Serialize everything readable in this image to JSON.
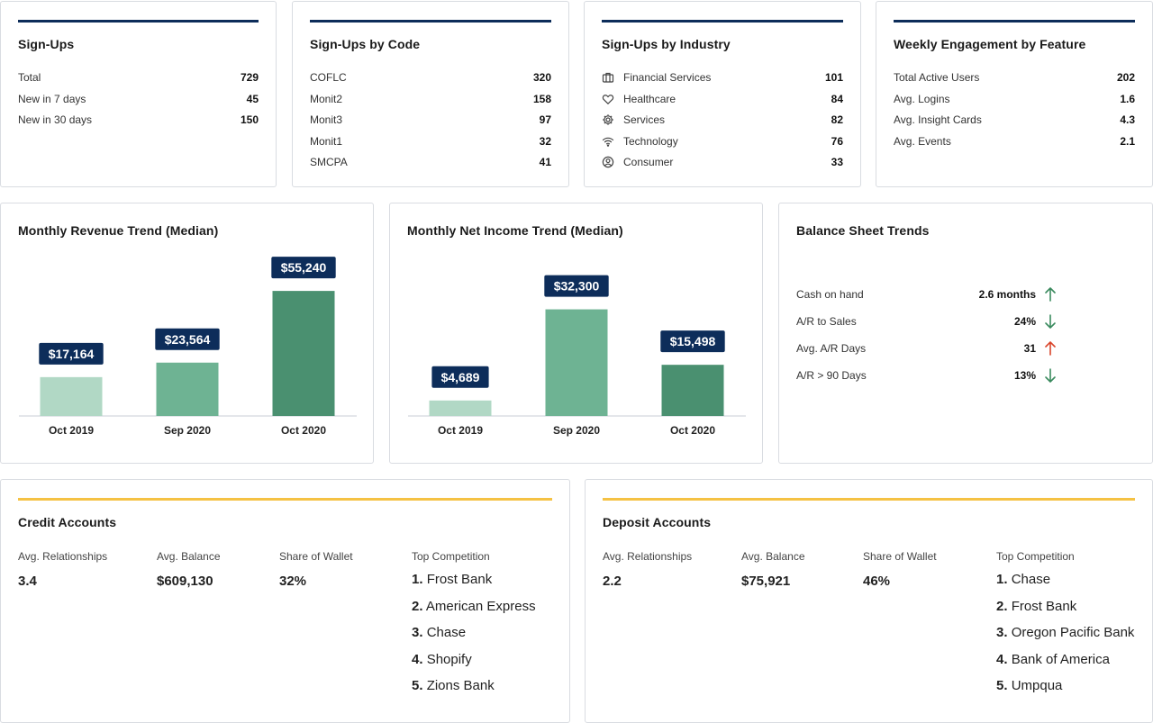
{
  "signups": {
    "title": "Sign-Ups",
    "rows": [
      {
        "label": "Total",
        "value": "729"
      },
      {
        "label": "New in 7 days",
        "value": "45"
      },
      {
        "label": "New in 30 days",
        "value": "150"
      }
    ]
  },
  "signups_by_code": {
    "title": "Sign-Ups by Code",
    "rows": [
      {
        "label": "COFLC",
        "value": "320"
      },
      {
        "label": "Monit2",
        "value": "158"
      },
      {
        "label": "Monit3",
        "value": "97"
      },
      {
        "label": "Monit1",
        "value": "32"
      },
      {
        "label": "SMCPA",
        "value": "41"
      }
    ]
  },
  "signups_by_industry": {
    "title": "Sign-Ups by Industry",
    "rows": [
      {
        "label": "Financial Services",
        "value": "101",
        "icon": "briefcase-icon"
      },
      {
        "label": "Healthcare",
        "value": "84",
        "icon": "heart-icon"
      },
      {
        "label": "Services",
        "value": "82",
        "icon": "gear-icon"
      },
      {
        "label": "Technology",
        "value": "76",
        "icon": "wifi-icon"
      },
      {
        "label": "Consumer",
        "value": "33",
        "icon": "user-circle-icon"
      }
    ]
  },
  "weekly_engagement": {
    "title": "Weekly Engagement by Feature",
    "rows": [
      {
        "label": "Total Active Users",
        "value": "202"
      },
      {
        "label": "Avg. Logins",
        "value": "1.6"
      },
      {
        "label": "Avg. Insight Cards",
        "value": "4.3"
      },
      {
        "label": "Avg. Events",
        "value": "2.1"
      }
    ]
  },
  "chart_data": [
    {
      "type": "bar",
      "title": "Monthly Revenue Trend (Median)",
      "categories": [
        "Oct 2019",
        "Sep 2020",
        "Oct 2020"
      ],
      "values": [
        17164,
        23564,
        55240
      ],
      "labels": [
        "$17,164",
        "$23,564",
        "$55,240"
      ],
      "colors": [
        "#b1d8c5",
        "#6eb393",
        "#4a9070"
      ],
      "ylim": [
        0,
        70000
      ]
    },
    {
      "type": "bar",
      "title": "Monthly Net Income Trend (Median)",
      "categories": [
        "Oct 2019",
        "Sep 2020",
        "Oct 2020"
      ],
      "values": [
        4689,
        32300,
        15498
      ],
      "labels": [
        "$4,689",
        "$32,300",
        "$15,498"
      ],
      "colors": [
        "#b1d8c5",
        "#6eb393",
        "#4a9070"
      ],
      "ylim": [
        0,
        48000
      ]
    }
  ],
  "balance_sheet": {
    "title": "Balance Sheet Trends",
    "rows": [
      {
        "label": "Cash on hand",
        "value": "2.6 months",
        "direction": "up",
        "color": "#3a8a5e"
      },
      {
        "label": "A/R to Sales",
        "value": "24%",
        "direction": "down",
        "color": "#3a8a5e"
      },
      {
        "label": "Avg. A/R Days",
        "value": "31",
        "direction": "up",
        "color": "#d9452b"
      },
      {
        "label": "A/R > 90 Days",
        "value": "13%",
        "direction": "down",
        "color": "#3a8a5e"
      }
    ]
  },
  "credit_accounts": {
    "title": "Credit Accounts",
    "relationships_label": "Avg. Relationships",
    "relationships_value": "3.4",
    "balance_label": "Avg. Balance",
    "balance_value": "$609,130",
    "wallet_label": "Share of Wallet",
    "wallet_value": "32%",
    "competition_label": "Top Competition",
    "competition": [
      {
        "num": "1.",
        "name": "Frost Bank"
      },
      {
        "num": "2.",
        "name": "American Express"
      },
      {
        "num": "3.",
        "name": "Chase"
      },
      {
        "num": "4.",
        "name": "Shopify"
      },
      {
        "num": "5.",
        "name": "Zions Bank"
      }
    ]
  },
  "deposit_accounts": {
    "title": "Deposit Accounts",
    "relationships_label": "Avg. Relationships",
    "relationships_value": "2.2",
    "balance_label": "Avg. Balance",
    "balance_value": "$75,921",
    "wallet_label": "Share of Wallet",
    "wallet_value": "46%",
    "competition_label": "Top Competition",
    "competition": [
      {
        "num": "1.",
        "name": "Chase"
      },
      {
        "num": "2.",
        "name": "Frost Bank"
      },
      {
        "num": "3.",
        "name": "Oregon Pacific Bank"
      },
      {
        "num": "4.",
        "name": "Bank of America"
      },
      {
        "num": "5.",
        "name": "Umpqua"
      }
    ]
  },
  "colors": {
    "navy": "#0d2d5a",
    "gold": "#f5c244",
    "border": "#d9dce1"
  }
}
